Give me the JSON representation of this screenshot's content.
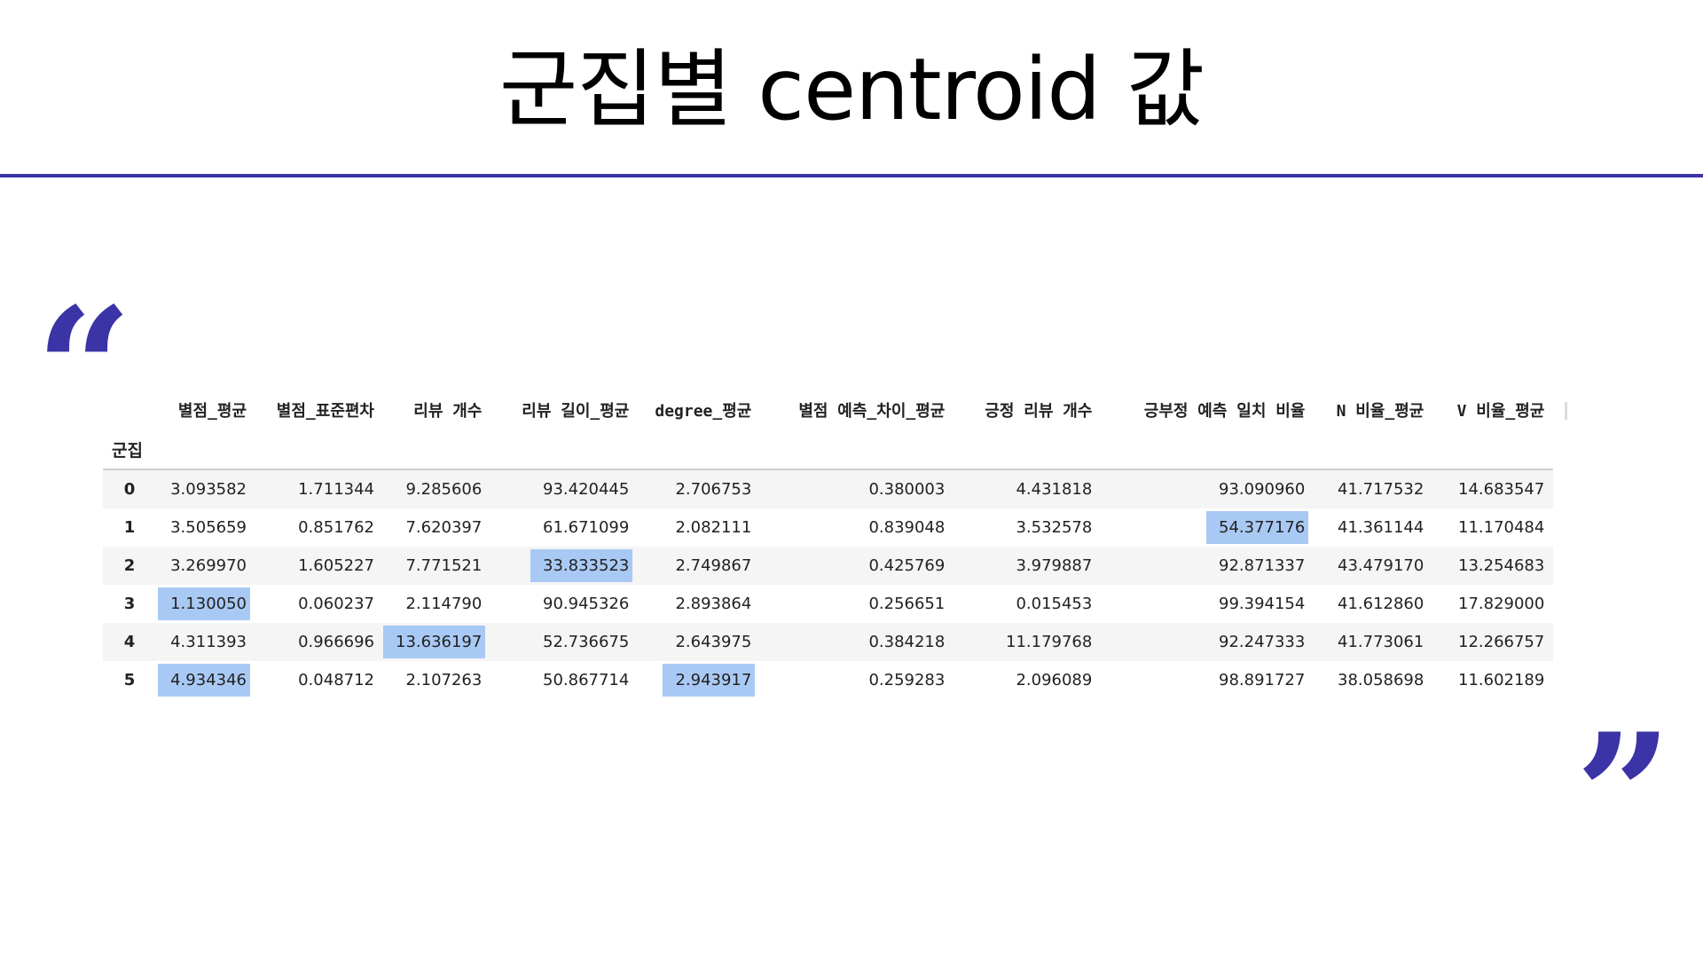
{
  "slide": {
    "title": "군집별 centroid 값"
  },
  "table": {
    "index_name": "군집",
    "columns": [
      "별점_평균",
      "별점_표준편차",
      "리뷰 개수",
      "리뷰 길이_평균",
      "degree_평균",
      "별점 예측_차이_평균",
      "긍정 리뷰 개수",
      "긍부정 예측 일치 비율",
      "N 비율_평균",
      "V 비율_평균"
    ],
    "rows": [
      {
        "index": "0",
        "cells": [
          {
            "v": "3.093582"
          },
          {
            "v": "1.711344"
          },
          {
            "v": "9.285606"
          },
          {
            "v": "93.420445"
          },
          {
            "v": "2.706753"
          },
          {
            "v": "0.380003"
          },
          {
            "v": "4.431818"
          },
          {
            "v": "93.090960"
          },
          {
            "v": "41.717532"
          },
          {
            "v": "14.683547"
          }
        ]
      },
      {
        "index": "1",
        "cells": [
          {
            "v": "3.505659"
          },
          {
            "v": "0.851762"
          },
          {
            "v": "7.620397"
          },
          {
            "v": "61.671099"
          },
          {
            "v": "2.082111"
          },
          {
            "v": "0.839048"
          },
          {
            "v": "3.532578"
          },
          {
            "v": "54.377176",
            "highlight": true
          },
          {
            "v": "41.361144"
          },
          {
            "v": "11.170484"
          }
        ]
      },
      {
        "index": "2",
        "cells": [
          {
            "v": "3.269970"
          },
          {
            "v": "1.605227"
          },
          {
            "v": "7.771521"
          },
          {
            "v": "33.833523",
            "highlight": true
          },
          {
            "v": "2.749867"
          },
          {
            "v": "0.425769"
          },
          {
            "v": "3.979887"
          },
          {
            "v": "92.871337"
          },
          {
            "v": "43.479170"
          },
          {
            "v": "13.254683"
          }
        ]
      },
      {
        "index": "3",
        "cells": [
          {
            "v": "1.130050",
            "highlight": true
          },
          {
            "v": "0.060237"
          },
          {
            "v": "2.114790"
          },
          {
            "v": "90.945326"
          },
          {
            "v": "2.893864"
          },
          {
            "v": "0.256651"
          },
          {
            "v": "0.015453"
          },
          {
            "v": "99.394154"
          },
          {
            "v": "41.612860"
          },
          {
            "v": "17.829000"
          }
        ]
      },
      {
        "index": "4",
        "cells": [
          {
            "v": "4.311393"
          },
          {
            "v": "0.966696"
          },
          {
            "v": "13.636197",
            "highlight": true
          },
          {
            "v": "52.736675"
          },
          {
            "v": "2.643975"
          },
          {
            "v": "0.384218"
          },
          {
            "v": "11.179768"
          },
          {
            "v": "92.247333"
          },
          {
            "v": "41.773061"
          },
          {
            "v": "12.266757"
          }
        ]
      },
      {
        "index": "5",
        "cells": [
          {
            "v": "4.934346",
            "highlight": true
          },
          {
            "v": "0.048712"
          },
          {
            "v": "2.107263"
          },
          {
            "v": "50.867714"
          },
          {
            "v": "2.943917",
            "highlight": true
          },
          {
            "v": "0.259283"
          },
          {
            "v": "2.096089"
          },
          {
            "v": "98.891727"
          },
          {
            "v": "38.058698"
          },
          {
            "v": "11.602189"
          }
        ]
      }
    ]
  },
  "colors": {
    "accent": "#3b34a6",
    "highlight": "#a9c9f5",
    "stripe": "#f5f5f5"
  },
  "icons": {
    "open_quote": "left-double-quote-icon",
    "close_quote": "right-double-quote-icon"
  }
}
